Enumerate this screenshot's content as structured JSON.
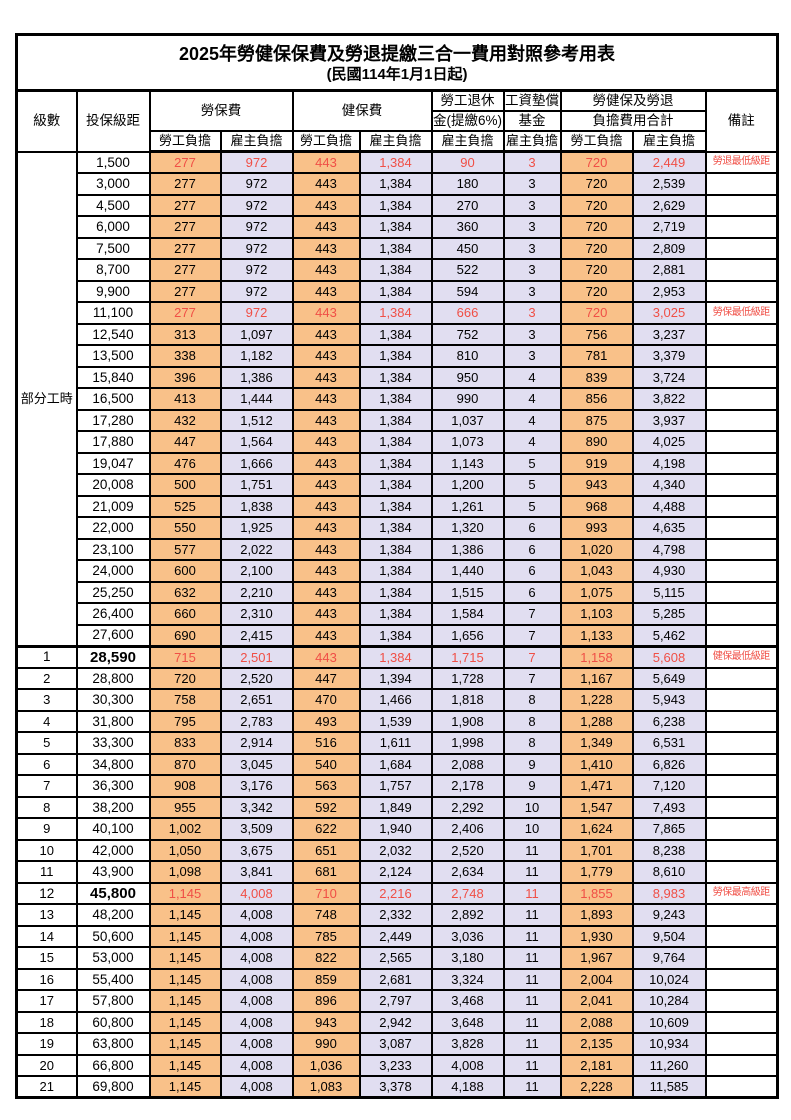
{
  "title": "2025年勞健保保費及勞退提繳三合一費用對照參考用表",
  "subtitle": "(民國114年1月1日起)",
  "header": {
    "level": "級數",
    "bracket": "投保級距",
    "labor": "勞保費",
    "health": "健保費",
    "pension_line1": "勞工退休",
    "pension_line2": "金(提繳6%)",
    "fund_line1": "工資墊償",
    "fund_line2": "基金",
    "total_line1": "勞健保及勞退",
    "total_line2": "負擔費用合計",
    "note": "備註",
    "employee": "勞工負擔",
    "employer": "雇主負擔"
  },
  "part_time_label": "部分工時",
  "part_time_rowspan": 23,
  "colors": {
    "orange": "#f9c189",
    "lavender": "#e1def1",
    "red": "#f04f46"
  },
  "rows": [
    {
      "br": "1,500",
      "v": [
        "277",
        "972",
        "443",
        "1,384",
        "90",
        "3",
        "720",
        "2,449"
      ],
      "note": "勞退最低級距",
      "red": true
    },
    {
      "br": "3,000",
      "v": [
        "277",
        "972",
        "443",
        "1,384",
        "180",
        "3",
        "720",
        "2,539"
      ]
    },
    {
      "br": "4,500",
      "v": [
        "277",
        "972",
        "443",
        "1,384",
        "270",
        "3",
        "720",
        "2,629"
      ]
    },
    {
      "br": "6,000",
      "v": [
        "277",
        "972",
        "443",
        "1,384",
        "360",
        "3",
        "720",
        "2,719"
      ]
    },
    {
      "br": "7,500",
      "v": [
        "277",
        "972",
        "443",
        "1,384",
        "450",
        "3",
        "720",
        "2,809"
      ]
    },
    {
      "br": "8,700",
      "v": [
        "277",
        "972",
        "443",
        "1,384",
        "522",
        "3",
        "720",
        "2,881"
      ]
    },
    {
      "br": "9,900",
      "v": [
        "277",
        "972",
        "443",
        "1,384",
        "594",
        "3",
        "720",
        "2,953"
      ]
    },
    {
      "br": "11,100",
      "v": [
        "277",
        "972",
        "443",
        "1,384",
        "666",
        "3",
        "720",
        "3,025"
      ],
      "note": "勞保最低級距",
      "red": true
    },
    {
      "br": "12,540",
      "v": [
        "313",
        "1,097",
        "443",
        "1,384",
        "752",
        "3",
        "756",
        "3,237"
      ]
    },
    {
      "br": "13,500",
      "v": [
        "338",
        "1,182",
        "443",
        "1,384",
        "810",
        "3",
        "781",
        "3,379"
      ]
    },
    {
      "br": "15,840",
      "v": [
        "396",
        "1,386",
        "443",
        "1,384",
        "950",
        "4",
        "839",
        "3,724"
      ]
    },
    {
      "br": "16,500",
      "v": [
        "413",
        "1,444",
        "443",
        "1,384",
        "990",
        "4",
        "856",
        "3,822"
      ]
    },
    {
      "br": "17,280",
      "v": [
        "432",
        "1,512",
        "443",
        "1,384",
        "1,037",
        "4",
        "875",
        "3,937"
      ]
    },
    {
      "br": "17,880",
      "v": [
        "447",
        "1,564",
        "443",
        "1,384",
        "1,073",
        "4",
        "890",
        "4,025"
      ]
    },
    {
      "br": "19,047",
      "v": [
        "476",
        "1,666",
        "443",
        "1,384",
        "1,143",
        "5",
        "919",
        "4,198"
      ]
    },
    {
      "br": "20,008",
      "v": [
        "500",
        "1,751",
        "443",
        "1,384",
        "1,200",
        "5",
        "943",
        "4,340"
      ]
    },
    {
      "br": "21,009",
      "v": [
        "525",
        "1,838",
        "443",
        "1,384",
        "1,261",
        "5",
        "968",
        "4,488"
      ]
    },
    {
      "br": "22,000",
      "v": [
        "550",
        "1,925",
        "443",
        "1,384",
        "1,320",
        "6",
        "993",
        "4,635"
      ]
    },
    {
      "br": "23,100",
      "v": [
        "577",
        "2,022",
        "443",
        "1,384",
        "1,386",
        "6",
        "1,020",
        "4,798"
      ]
    },
    {
      "br": "24,000",
      "v": [
        "600",
        "2,100",
        "443",
        "1,384",
        "1,440",
        "6",
        "1,043",
        "4,930"
      ]
    },
    {
      "br": "25,250",
      "v": [
        "632",
        "2,210",
        "443",
        "1,384",
        "1,515",
        "6",
        "1,075",
        "5,115"
      ]
    },
    {
      "br": "26,400",
      "v": [
        "660",
        "2,310",
        "443",
        "1,384",
        "1,584",
        "7",
        "1,103",
        "5,285"
      ]
    },
    {
      "br": "27,600",
      "v": [
        "690",
        "2,415",
        "443",
        "1,384",
        "1,656",
        "7",
        "1,133",
        "5,462"
      ]
    },
    {
      "lv": "1",
      "br": "28,590",
      "v": [
        "715",
        "2,501",
        "443",
        "1,384",
        "1,715",
        "7",
        "1,158",
        "5,608"
      ],
      "note": "健保最低級距",
      "red": true,
      "bold": true,
      "thick_top": true
    },
    {
      "lv": "2",
      "br": "28,800",
      "v": [
        "720",
        "2,520",
        "447",
        "1,394",
        "1,728",
        "7",
        "1,167",
        "5,649"
      ]
    },
    {
      "lv": "3",
      "br": "30,300",
      "v": [
        "758",
        "2,651",
        "470",
        "1,466",
        "1,818",
        "8",
        "1,228",
        "5,943"
      ]
    },
    {
      "lv": "4",
      "br": "31,800",
      "v": [
        "795",
        "2,783",
        "493",
        "1,539",
        "1,908",
        "8",
        "1,288",
        "6,238"
      ]
    },
    {
      "lv": "5",
      "br": "33,300",
      "v": [
        "833",
        "2,914",
        "516",
        "1,611",
        "1,998",
        "8",
        "1,349",
        "6,531"
      ]
    },
    {
      "lv": "6",
      "br": "34,800",
      "v": [
        "870",
        "3,045",
        "540",
        "1,684",
        "2,088",
        "9",
        "1,410",
        "6,826"
      ]
    },
    {
      "lv": "7",
      "br": "36,300",
      "v": [
        "908",
        "3,176",
        "563",
        "1,757",
        "2,178",
        "9",
        "1,471",
        "7,120"
      ]
    },
    {
      "lv": "8",
      "br": "38,200",
      "v": [
        "955",
        "3,342",
        "592",
        "1,849",
        "2,292",
        "10",
        "1,547",
        "7,493"
      ]
    },
    {
      "lv": "9",
      "br": "40,100",
      "v": [
        "1,002",
        "3,509",
        "622",
        "1,940",
        "2,406",
        "10",
        "1,624",
        "7,865"
      ]
    },
    {
      "lv": "10",
      "br": "42,000",
      "v": [
        "1,050",
        "3,675",
        "651",
        "2,032",
        "2,520",
        "11",
        "1,701",
        "8,238"
      ]
    },
    {
      "lv": "11",
      "br": "43,900",
      "v": [
        "1,098",
        "3,841",
        "681",
        "2,124",
        "2,634",
        "11",
        "1,779",
        "8,610"
      ]
    },
    {
      "lv": "12",
      "br": "45,800",
      "v": [
        "1,145",
        "4,008",
        "710",
        "2,216",
        "2,748",
        "11",
        "1,855",
        "8,983"
      ],
      "note": "勞保最高級距",
      "red": true,
      "bold": true
    },
    {
      "lv": "13",
      "br": "48,200",
      "v": [
        "1,145",
        "4,008",
        "748",
        "2,332",
        "2,892",
        "11",
        "1,893",
        "9,243"
      ]
    },
    {
      "lv": "14",
      "br": "50,600",
      "v": [
        "1,145",
        "4,008",
        "785",
        "2,449",
        "3,036",
        "11",
        "1,930",
        "9,504"
      ]
    },
    {
      "lv": "15",
      "br": "53,000",
      "v": [
        "1,145",
        "4,008",
        "822",
        "2,565",
        "3,180",
        "11",
        "1,967",
        "9,764"
      ]
    },
    {
      "lv": "16",
      "br": "55,400",
      "v": [
        "1,145",
        "4,008",
        "859",
        "2,681",
        "3,324",
        "11",
        "2,004",
        "10,024"
      ]
    },
    {
      "lv": "17",
      "br": "57,800",
      "v": [
        "1,145",
        "4,008",
        "896",
        "2,797",
        "3,468",
        "11",
        "2,041",
        "10,284"
      ]
    },
    {
      "lv": "18",
      "br": "60,800",
      "v": [
        "1,145",
        "4,008",
        "943",
        "2,942",
        "3,648",
        "11",
        "2,088",
        "10,609"
      ]
    },
    {
      "lv": "19",
      "br": "63,800",
      "v": [
        "1,145",
        "4,008",
        "990",
        "3,087",
        "3,828",
        "11",
        "2,135",
        "10,934"
      ]
    },
    {
      "lv": "20",
      "br": "66,800",
      "v": [
        "1,145",
        "4,008",
        "1,036",
        "3,233",
        "4,008",
        "11",
        "2,181",
        "11,260"
      ]
    },
    {
      "lv": "21",
      "br": "69,800",
      "v": [
        "1,145",
        "4,008",
        "1,083",
        "3,378",
        "4,188",
        "11",
        "2,228",
        "11,585"
      ]
    }
  ]
}
